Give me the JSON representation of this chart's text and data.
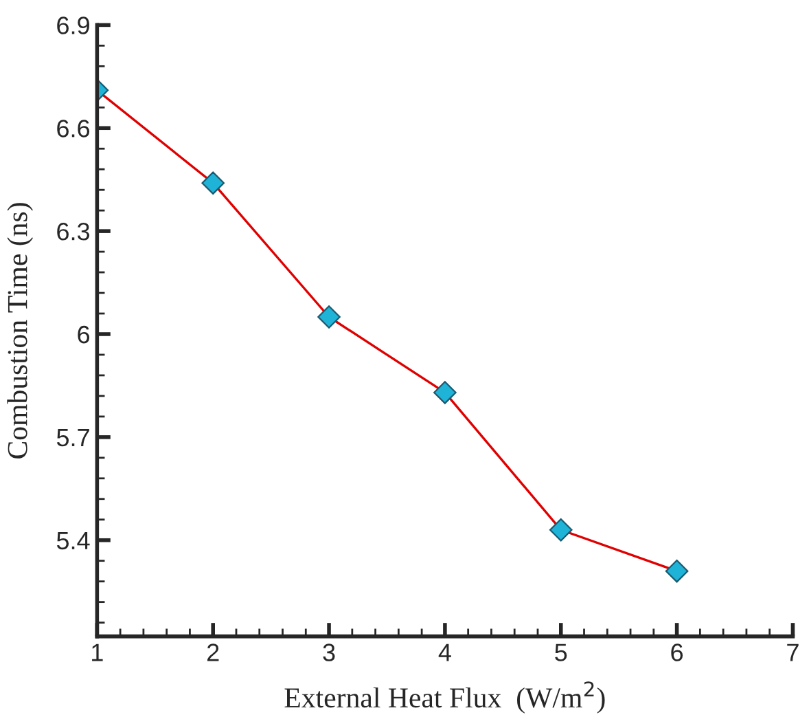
{
  "chart_data": {
    "type": "line",
    "xlabel": "External Heat Flux  (W/m$^{2}$)",
    "ylabel": "Combustion Time (ns)",
    "x": [
      1,
      2,
      3,
      4,
      5,
      6
    ],
    "series": [
      {
        "color": "#e00000",
        "values": [
          6.71,
          6.44,
          6.05,
          5.83,
          5.43,
          5.31
        ]
      }
    ],
    "marker": "diamond",
    "line_style": "solid",
    "xlim": [
      1,
      7
    ],
    "xticks": [
      1,
      2,
      3,
      4,
      5,
      6,
      7
    ],
    "ylim": [
      5.12,
      6.9
    ],
    "yticks": [
      5.4,
      5.7,
      {
        "value": 6,
        "label": "6"
      },
      6.3,
      6.6,
      6.9
    ],
    "grid": false,
    "legend": false
  }
}
